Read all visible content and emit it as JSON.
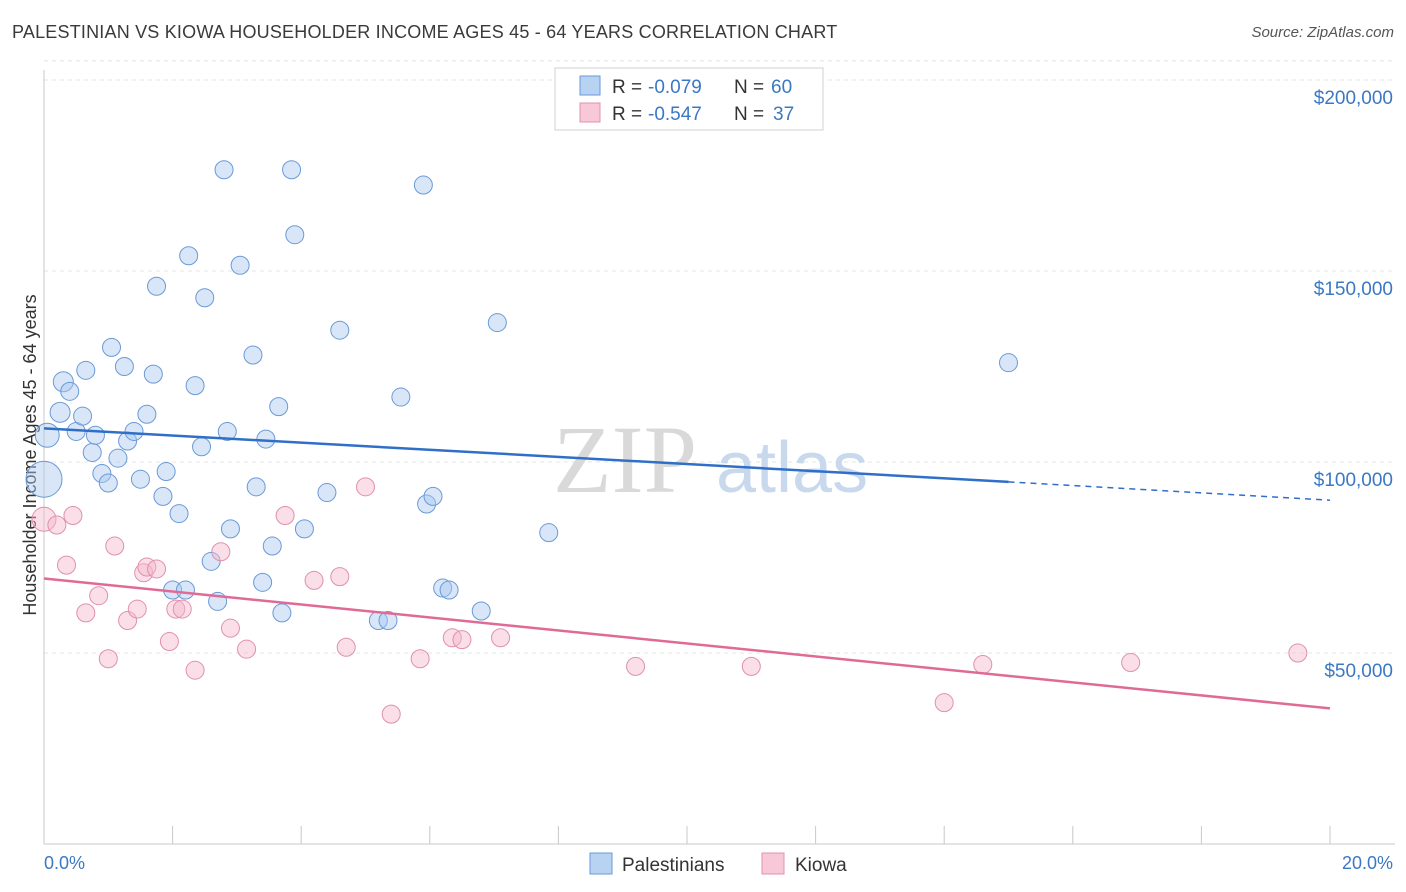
{
  "title": "PALESTINIAN VS KIOWA HOUSEHOLDER INCOME AGES 45 - 64 YEARS CORRELATION CHART",
  "source": "Source: ZipAtlas.com",
  "watermark": {
    "zip": "ZIP",
    "atlas": "atlas"
  },
  "legend_top": [
    {
      "r_label": "R = ",
      "r_value": "-0.079",
      "n_label": "N = ",
      "n_value": "60"
    },
    {
      "r_label": "R = ",
      "r_value": "-0.547",
      "n_label": "N = ",
      "n_value": "37"
    }
  ],
  "chart_data": {
    "type": "scatter",
    "title": "PALESTINIAN VS KIOWA HOUSEHOLDER INCOME AGES 45 - 64 YEARS CORRELATION CHART",
    "ylabel": "Householder Income Ages 45 - 64 years",
    "xlabel": "",
    "xlim": [
      0,
      20
    ],
    "ylim": [
      0,
      210000
    ],
    "x_tick_labels": [
      "0.0%",
      "20.0%"
    ],
    "y_ticks": [
      50000,
      100000,
      150000,
      200000
    ],
    "y_tick_labels": [
      "$50,000",
      "$100,000",
      "$150,000",
      "$200,000"
    ],
    "grid": true,
    "legend_position": "top-center and bottom",
    "colors": {
      "Palestinians": "#a8c8f0",
      "Kiowa": "#f5b8cc",
      "Palestinians_line": "#2f6fc8",
      "Kiowa_line": "#e06a96"
    },
    "series": [
      {
        "name": "Palestinians",
        "r": -0.079,
        "n": 60,
        "trend": {
          "x0": 0,
          "y0": 108800,
          "x1": 15.0,
          "y1": 94800,
          "dashed_to_x": 20.0,
          "dashed_to_y": 90000
        },
        "points": [
          [
            0.0,
            95500,
            18
          ],
          [
            0.05,
            107000,
            12
          ],
          [
            0.25,
            113000,
            10
          ],
          [
            0.3,
            121000,
            10
          ],
          [
            0.4,
            118500,
            9
          ],
          [
            0.5,
            108000,
            9
          ],
          [
            0.6,
            112000,
            9
          ],
          [
            0.65,
            124000,
            9
          ],
          [
            0.75,
            102500,
            9
          ],
          [
            0.8,
            107000,
            9
          ],
          [
            0.9,
            97000,
            9
          ],
          [
            1.0,
            94500,
            9
          ],
          [
            1.05,
            130000,
            9
          ],
          [
            1.15,
            101000,
            9
          ],
          [
            1.25,
            125000,
            9
          ],
          [
            1.3,
            105500,
            9
          ],
          [
            1.4,
            108000,
            9
          ],
          [
            1.5,
            95500,
            9
          ],
          [
            1.6,
            112500,
            9
          ],
          [
            1.7,
            123000,
            9
          ],
          [
            1.75,
            146000,
            9
          ],
          [
            1.85,
            91000,
            9
          ],
          [
            1.9,
            97500,
            9
          ],
          [
            2.0,
            66500,
            9
          ],
          [
            2.1,
            86500,
            9
          ],
          [
            2.2,
            66500,
            9
          ],
          [
            2.25,
            154000,
            9
          ],
          [
            2.35,
            120000,
            9
          ],
          [
            2.45,
            104000,
            9
          ],
          [
            2.5,
            143000,
            9
          ],
          [
            2.6,
            74000,
            9
          ],
          [
            2.7,
            63500,
            9
          ],
          [
            2.8,
            176500,
            9
          ],
          [
            2.85,
            108000,
            9
          ],
          [
            2.9,
            82500,
            9
          ],
          [
            3.05,
            151500,
            9
          ],
          [
            3.25,
            128000,
            9
          ],
          [
            3.3,
            93500,
            9
          ],
          [
            3.4,
            68500,
            9
          ],
          [
            3.45,
            106000,
            9
          ],
          [
            3.55,
            78000,
            9
          ],
          [
            3.65,
            114500,
            9
          ],
          [
            3.7,
            60500,
            9
          ],
          [
            3.85,
            176500,
            9
          ],
          [
            3.9,
            159500,
            9
          ],
          [
            4.05,
            82500,
            9
          ],
          [
            4.4,
            92000,
            9
          ],
          [
            4.6,
            134500,
            9
          ],
          [
            5.2,
            58500,
            9
          ],
          [
            5.35,
            58500,
            9
          ],
          [
            5.55,
            117000,
            9
          ],
          [
            5.9,
            172500,
            9
          ],
          [
            5.95,
            89000,
            9
          ],
          [
            6.05,
            91000,
            9
          ],
          [
            6.2,
            67000,
            9
          ],
          [
            6.3,
            66500,
            9
          ],
          [
            6.8,
            61000,
            9
          ],
          [
            7.05,
            136500,
            9
          ],
          [
            7.85,
            81500,
            9
          ],
          [
            15.0,
            126000,
            9
          ]
        ]
      },
      {
        "name": "Kiowa",
        "r": -0.547,
        "n": 37,
        "trend": {
          "x0": 0,
          "y0": 69500,
          "x1": 20.0,
          "y1": 35500
        },
        "points": [
          [
            0.0,
            85000,
            12
          ],
          [
            0.2,
            83500,
            9
          ],
          [
            0.35,
            73000,
            9
          ],
          [
            0.45,
            86000,
            9
          ],
          [
            0.65,
            60500,
            9
          ],
          [
            0.85,
            65000,
            9
          ],
          [
            1.0,
            48500,
            9
          ],
          [
            1.1,
            78000,
            9
          ],
          [
            1.3,
            58500,
            9
          ],
          [
            1.45,
            61500,
            9
          ],
          [
            1.55,
            71000,
            9
          ],
          [
            1.6,
            72500,
            9
          ],
          [
            1.75,
            72000,
            9
          ],
          [
            1.95,
            53000,
            9
          ],
          [
            2.05,
            61500,
            9
          ],
          [
            2.15,
            61500,
            9
          ],
          [
            2.35,
            45500,
            9
          ],
          [
            2.75,
            76500,
            9
          ],
          [
            2.9,
            56500,
            9
          ],
          [
            3.15,
            51000,
            9
          ],
          [
            3.75,
            86000,
            9
          ],
          [
            4.2,
            69000,
            9
          ],
          [
            4.6,
            70000,
            9
          ],
          [
            4.7,
            51500,
            9
          ],
          [
            5.0,
            93500,
            9
          ],
          [
            5.4,
            34000,
            9
          ],
          [
            5.85,
            48500,
            9
          ],
          [
            6.35,
            54000,
            9
          ],
          [
            6.5,
            53500,
            9
          ],
          [
            7.1,
            54000,
            9
          ],
          [
            9.2,
            46500,
            9
          ],
          [
            11.0,
            46500,
            9
          ],
          [
            14.0,
            37000,
            9
          ],
          [
            14.6,
            47000,
            9
          ],
          [
            16.9,
            47500,
            9
          ],
          [
            19.5,
            50000,
            9
          ]
        ]
      }
    ]
  },
  "legend_bottom": [
    {
      "label": "Palestinians"
    },
    {
      "label": "Kiowa"
    }
  ]
}
